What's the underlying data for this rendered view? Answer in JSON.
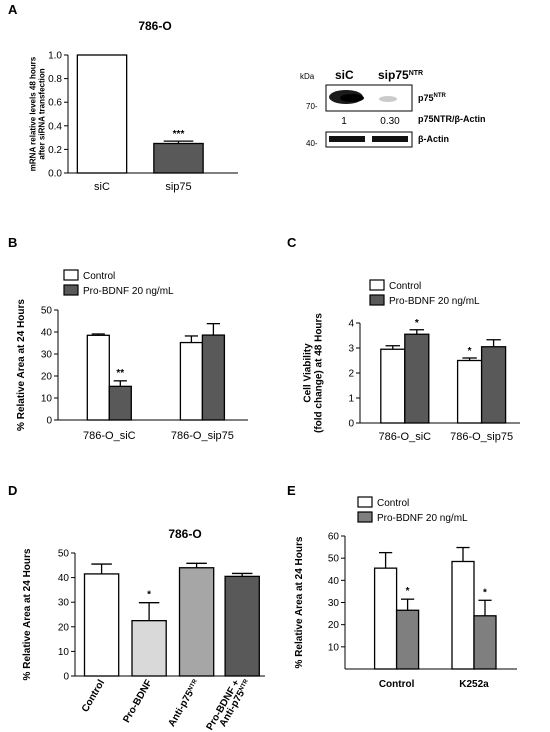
{
  "figure": {
    "panel_letters": [
      "A",
      "B",
      "C",
      "D",
      "E"
    ]
  },
  "chart_data": [
    {
      "id": "A",
      "type": "bar",
      "title": "786-O",
      "categories": [
        "siC",
        "sip75"
      ],
      "values": [
        1.0,
        0.25
      ],
      "errors": [
        0,
        0.02
      ],
      "significance": [
        "",
        "***"
      ],
      "fills": [
        "#ffffff",
        "#595959"
      ],
      "ylabel_lines": [
        "mRNA relative levels 48 hours",
        "after siRNA transfection"
      ],
      "ylim": [
        0,
        1.0
      ],
      "yticks": [
        "0.0",
        "0.2",
        "0.4",
        "0.6",
        "0.8",
        "1.0"
      ]
    },
    {
      "id": "B",
      "type": "bar",
      "categories": [
        "786-O_siC",
        "786-O_sip75"
      ],
      "series": [
        {
          "name": "Control",
          "values": [
            38.5,
            35.2
          ],
          "errors": [
            0.6,
            3.0
          ],
          "significance": [
            "",
            ""
          ],
          "color": "#ffffff"
        },
        {
          "name": "Pro-BDNF 20 ng/mL",
          "values": [
            15.3,
            38.6
          ],
          "errors": [
            2.5,
            5.2
          ],
          "significance": [
            "**",
            ""
          ],
          "color": "#595959"
        }
      ],
      "ylabel": "% Relative Area at 24 Hours",
      "ylim": [
        0,
        50
      ],
      "yticks": [
        "0",
        "10",
        "20",
        "30",
        "40",
        "50"
      ]
    },
    {
      "id": "C",
      "type": "bar",
      "categories": [
        "786-O_siC",
        "786-O_sip75"
      ],
      "series": [
        {
          "name": "Control",
          "values": [
            2.95,
            2.5
          ],
          "errors": [
            0.14,
            0.1
          ],
          "significance": [
            "",
            "*"
          ],
          "color": "#ffffff"
        },
        {
          "name": "Pro-BDNF 20 ng/mL",
          "values": [
            3.55,
            3.05
          ],
          "errors": [
            0.18,
            0.28
          ],
          "significance": [
            "*",
            ""
          ],
          "color": "#595959"
        }
      ],
      "ylabel_lines": [
        "Cell Viability",
        "(fold change) at 48 Hours"
      ],
      "ylim": [
        0,
        4
      ],
      "yticks": [
        "0",
        "1",
        "2",
        "3",
        "4"
      ]
    },
    {
      "id": "D",
      "type": "bar",
      "title": "786-O",
      "categories": [
        "Control",
        "Pro-BDNF",
        "Anti-p75NTR",
        "Pro-BDNF + Anti-p75NTR"
      ],
      "category_lines": [
        [
          "Control"
        ],
        [
          "Pro-BDNF"
        ],
        [
          "Anti-p75NTR"
        ],
        [
          "Pro-BDNF +",
          "Anti-p75NTR"
        ]
      ],
      "values": [
        41.5,
        22.5,
        44.0,
        40.5
      ],
      "errors": [
        4.0,
        7.3,
        1.8,
        1.2
      ],
      "significance": [
        "",
        "*",
        "",
        ""
      ],
      "fills": [
        "#ffffff",
        "#d9d9d9",
        "#a6a6a6",
        "#595959"
      ],
      "ylabel": "% Relative Area at 24 Hours",
      "ylim": [
        0,
        50
      ],
      "yticks": [
        "0",
        "10",
        "20",
        "30",
        "40",
        "50"
      ]
    },
    {
      "id": "E",
      "type": "bar",
      "categories": [
        "Control",
        "K252a"
      ],
      "series": [
        {
          "name": "Control",
          "values": [
            45.5,
            48.5
          ],
          "errors": [
            7.0,
            6.3
          ],
          "significance": [
            "",
            ""
          ],
          "color": "#ffffff"
        },
        {
          "name": "Pro-BDNF 20 ng/mL",
          "values": [
            26.5,
            24.0
          ],
          "errors": [
            5.0,
            7.0
          ],
          "significance": [
            "*",
            "*"
          ],
          "color": "#7f7f7f"
        }
      ],
      "ylabel": "% Relative Area at 24 Hours",
      "ylim": [
        0,
        60
      ],
      "yticks": [
        "10",
        "20",
        "30",
        "40",
        "50",
        "60"
      ]
    }
  ],
  "western_blot": {
    "kda_label": "kDa",
    "lanes": [
      "siC",
      "sip75NTR"
    ],
    "lane_sup": "NTR",
    "markers": [
      "70-",
      "40-"
    ],
    "quantification": [
      "1",
      "0.30"
    ],
    "bands": [
      {
        "label": "p75",
        "sup": "NTR"
      },
      {
        "label": "p75NTR/β-Actin"
      },
      {
        "label": "β-Actin"
      }
    ]
  }
}
